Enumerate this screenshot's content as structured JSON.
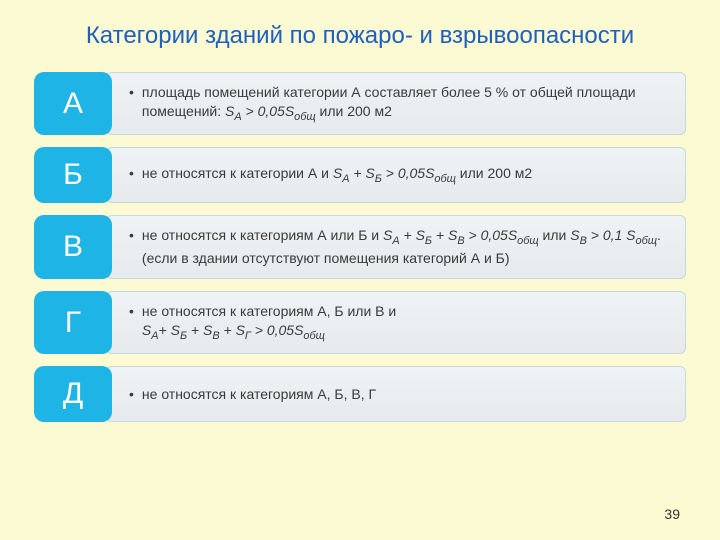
{
  "title": "Категории зданий по пожаро- и взрывоопасности",
  "page_number": "39",
  "badge_color": "#1eb4e6",
  "badge_text_color": "#ffffff",
  "background_color": "#fbfad3",
  "title_color": "#1e5fbf",
  "desc_bg_top": "#f0f3f5",
  "desc_bg_bottom": "#e6eaec",
  "desc_border": "#c7d9e0",
  "desc_text_color": "#3a3a3a",
  "title_fontsize": 24,
  "badge_fontsize": 30,
  "desc_fontsize": 14,
  "items": [
    {
      "letter": "А",
      "html": "площадь помещений категории А составляет более 5 % от общей площади помещений: <span class='ital'>S<span class='sub'>А</span> &gt; 0,05S<span class='sub'>общ</span></span> или 200 м2"
    },
    {
      "letter": "Б",
      "html": "не относятся к категории А и <span class='ital'>S<span class='sub'>А</span> + S<span class='sub'>Б</span> &gt; 0,05S<span class='sub'>общ</span></span> или 200 м2"
    },
    {
      "letter": "В",
      "html": "не относятся к категориям А или Б и <span class='ital'>S<span class='sub'>А</span> + S<span class='sub'>Б</span> + S<span class='sub'>В</span> &gt; 0,05S<span class='sub'>общ</span></span> или <span class='ital'>S<span class='sub'>В</span> &gt; 0,1 S<span class='sub'>общ</span></span>. (если в здании отсутствуют помещения категорий А и Б)"
    },
    {
      "letter": "Г",
      "html": "не относятся к категориям А, Б или В и<br><span class='ital'>S<span class='sub'>А</span>+ S<span class='sub'>Б</span> + S<span class='sub'>В</span> + S<span class='sub'>Г</span> &gt; 0,05S<span class='sub'>общ</span></span>"
    },
    {
      "letter": "Д",
      "html": "не относятся к категориям А, Б, В, Г"
    }
  ]
}
